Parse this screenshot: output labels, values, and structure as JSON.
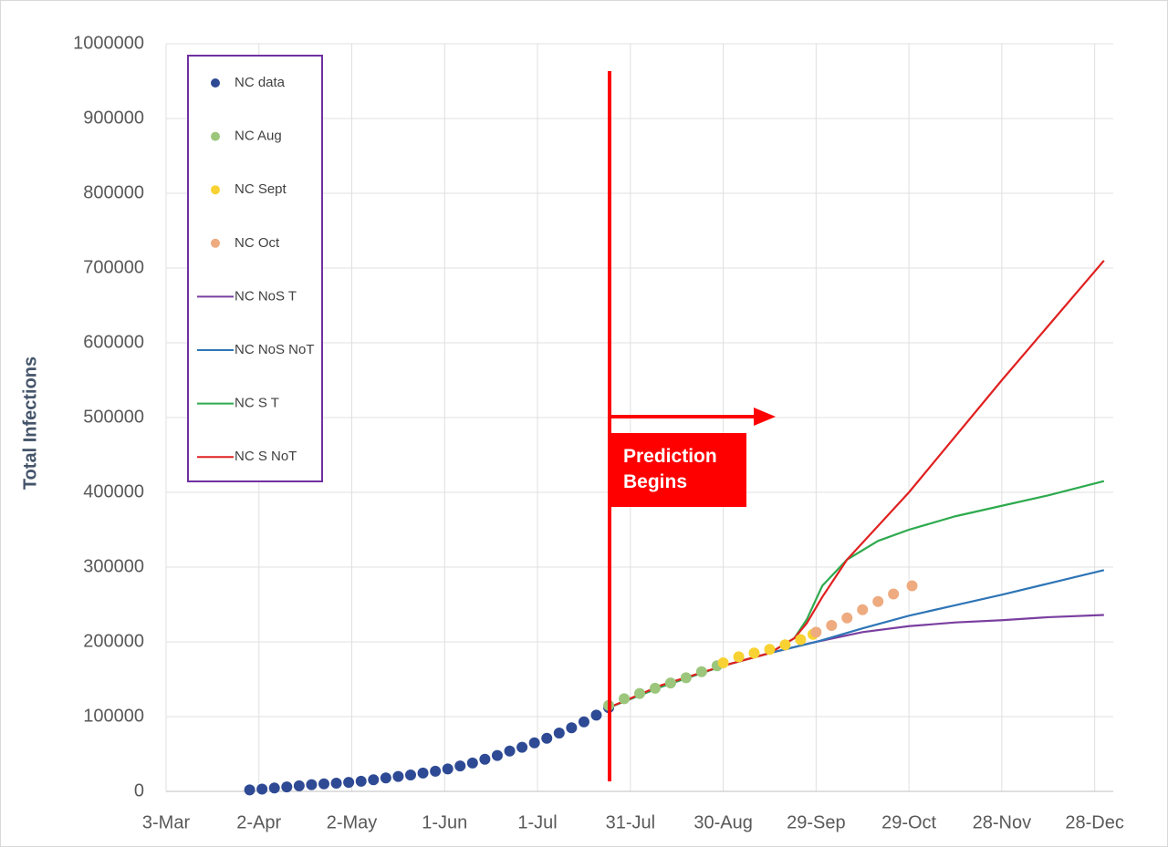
{
  "chart_data": {
    "type": "scatter",
    "ylabel": "Total Infections",
    "annotation": "Prediction Begins",
    "xlim": [
      0,
      306
    ],
    "xticks": [
      {
        "value": 0,
        "label": "3-Mar"
      },
      {
        "value": 30,
        "label": "2-Apr"
      },
      {
        "value": 60,
        "label": "2-May"
      },
      {
        "value": 90,
        "label": "1-Jun"
      },
      {
        "value": 120,
        "label": "1-Jul"
      },
      {
        "value": 150,
        "label": "31-Jul"
      },
      {
        "value": 180,
        "label": "30-Aug"
      },
      {
        "value": 210,
        "label": "29-Sep"
      },
      {
        "value": 240,
        "label": "29-Oct"
      },
      {
        "value": 270,
        "label": "28-Nov"
      },
      {
        "value": 300,
        "label": "28-Dec"
      }
    ],
    "ylim": [
      0,
      1000000
    ],
    "yticks": [
      0,
      100000,
      200000,
      300000,
      400000,
      500000,
      600000,
      700000,
      800000,
      900000,
      1000000
    ],
    "grid": true,
    "legend": "upper left",
    "series": [
      {
        "name": "NC data",
        "color": "#2e4a94",
        "style": "markers",
        "x": [
          27,
          31,
          35,
          39,
          43,
          47,
          51,
          55,
          59,
          63,
          67,
          71,
          75,
          79,
          83,
          87,
          91,
          95,
          99,
          103,
          107,
          111,
          115,
          119,
          123,
          127,
          131,
          135,
          139,
          143
        ],
        "values": [
          2000,
          3000,
          4500,
          6000,
          7500,
          9000,
          10000,
          11000,
          12000,
          13500,
          15500,
          18000,
          20000,
          22000,
          24500,
          27000,
          30000,
          34000,
          38000,
          43000,
          48000,
          54000,
          59000,
          65000,
          71000,
          78000,
          85000,
          93000,
          102000,
          112000
        ]
      },
      {
        "name": "NC Aug",
        "color": "#9cc67c",
        "style": "markers",
        "x": [
          143,
          148,
          153,
          158,
          163,
          168,
          173,
          178
        ],
        "values": [
          115000,
          124000,
          131000,
          138000,
          145000,
          152000,
          160000,
          168000
        ]
      },
      {
        "name": "NC Sept",
        "color": "#f7d232",
        "style": "markers",
        "x": [
          180,
          185,
          190,
          195,
          200,
          205,
          209
        ],
        "values": [
          172000,
          180000,
          185000,
          190000,
          196000,
          203000,
          210000
        ]
      },
      {
        "name": "NC Oct",
        "color": "#eeab80",
        "style": "markers",
        "x": [
          210,
          215,
          220,
          225,
          230,
          235,
          241
        ],
        "values": [
          213000,
          222000,
          232000,
          243000,
          254000,
          264000,
          275000
        ]
      },
      {
        "name": "NC NoS T",
        "color": "#7a3fa0",
        "style": "line",
        "x": [
          143,
          160,
          180,
          195,
          210,
          225,
          240,
          255,
          270,
          285,
          303
        ],
        "values": [
          112000,
          140000,
          168000,
          185000,
          200000,
          213000,
          221000,
          226000,
          229000,
          233000,
          236000
        ]
      },
      {
        "name": "NC NoS NoT",
        "color": "#2e75b6",
        "style": "line",
        "x": [
          143,
          160,
          180,
          195,
          210,
          225,
          240,
          255,
          270,
          285,
          303
        ],
        "values": [
          112000,
          140000,
          168000,
          185000,
          200000,
          218000,
          235000,
          249000,
          263000,
          278000,
          296000
        ]
      },
      {
        "name": "NC S T",
        "color": "#2eaa4e",
        "style": "line",
        "x": [
          143,
          160,
          180,
          195,
          203,
          207,
          212,
          220,
          230,
          240,
          255,
          270,
          285,
          303
        ],
        "values": [
          112000,
          140000,
          168000,
          185000,
          205000,
          230000,
          275000,
          310000,
          335000,
          350000,
          368000,
          382000,
          396000,
          415000
        ]
      },
      {
        "name": "NC S NoT",
        "color": "#e02020",
        "style": "line",
        "x": [
          143,
          160,
          180,
          195,
          203,
          207,
          212,
          220,
          240,
          270,
          303
        ],
        "values": [
          112000,
          142000,
          168000,
          185000,
          205000,
          225000,
          260000,
          310000,
          400000,
          550000,
          710000
        ]
      }
    ]
  }
}
